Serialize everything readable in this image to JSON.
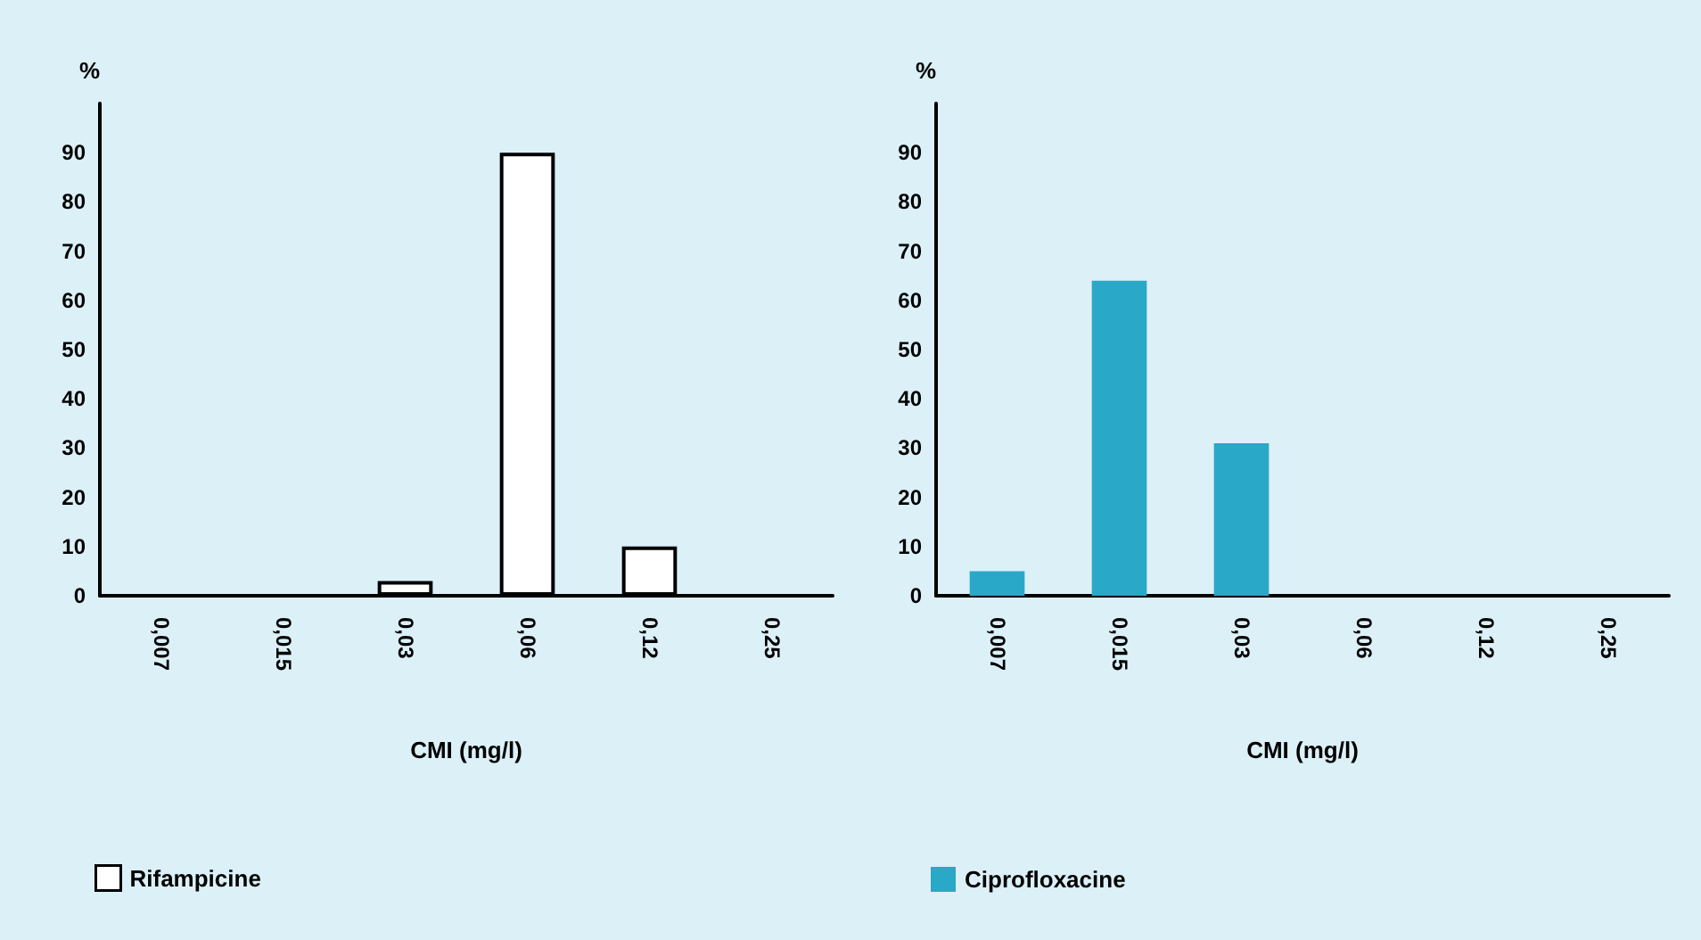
{
  "chart_data": [
    {
      "type": "bar",
      "categories": [
        "0,007",
        "0,015",
        "0,03",
        "0,06",
        "0,12",
        "0,25"
      ],
      "xlabel": "CMI (mg/l)",
      "ylabel": "%",
      "ylim": [
        0,
        100
      ],
      "yticks": [
        0,
        10,
        20,
        30,
        40,
        50,
        60,
        70,
        80,
        90
      ],
      "legend": "bottom left",
      "series": [
        {
          "name": "Rifampicine",
          "color": "#ffffff",
          "values": [
            0,
            0,
            3,
            90,
            10,
            0
          ]
        }
      ]
    },
    {
      "type": "bar",
      "categories": [
        "0,007",
        "0,015",
        "0,03",
        "0,06",
        "0,12",
        "0,25"
      ],
      "xlabel": "CMI (mg/l)",
      "ylabel": "%",
      "ylim": [
        0,
        100
      ],
      "yticks": [
        0,
        10,
        20,
        30,
        40,
        50,
        60,
        70,
        80,
        90
      ],
      "legend": "bottom left",
      "series": [
        {
          "name": "Ciprofloxacine",
          "color": "#2aa8c8",
          "values": [
            5,
            64,
            31,
            0,
            0,
            0
          ]
        }
      ]
    }
  ]
}
